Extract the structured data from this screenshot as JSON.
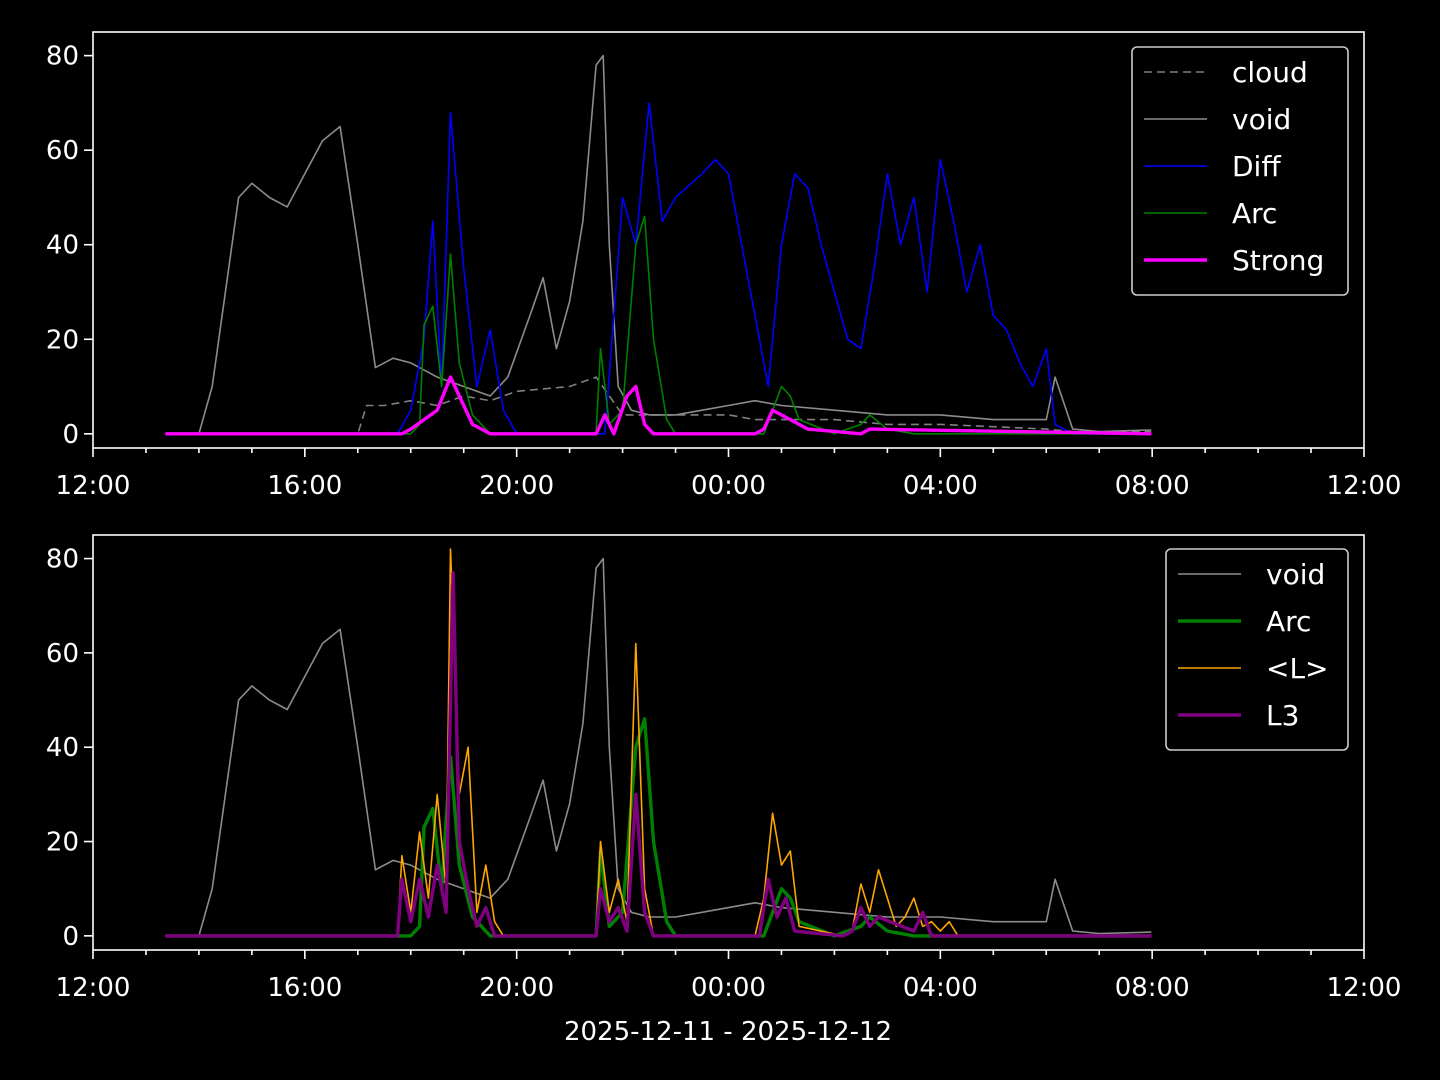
{
  "xlabel": "2025-12-11 - 2025-12-12",
  "chart_data": [
    {
      "type": "line",
      "xlim": [
        "2025-12-11 12:00",
        "2025-12-12 12:00"
      ],
      "ylim": [
        -3,
        85
      ],
      "xticks": [
        "12:00",
        "16:00",
        "20:00",
        "00:00",
        "04:00",
        "08:00",
        "12:00"
      ],
      "yticks": [
        "0",
        "20",
        "40",
        "60",
        "80"
      ],
      "legend_position": "top-right",
      "series": [
        {
          "name": "cloud",
          "color": "#808080",
          "style": "dashed",
          "width": 1.6,
          "x": [
            "2025-12-11 13:22",
            "2025-12-11 17:00",
            "2025-12-11 17:10",
            "2025-12-11 17:30",
            "2025-12-11 18:00",
            "2025-12-11 18:30",
            "2025-12-11 19:00",
            "2025-12-11 19:30",
            "2025-12-11 20:00",
            "2025-12-11 21:00",
            "2025-12-11 21:30",
            "2025-12-11 22:00",
            "2025-12-11 23:00",
            "2025-12-12 00:00",
            "2025-12-12 00:30",
            "2025-12-12 01:00",
            "2025-12-12 02:00",
            "2025-12-12 03:00",
            "2025-12-12 04:00",
            "2025-12-12 05:00",
            "2025-12-12 06:00",
            "2025-12-12 06:30",
            "2025-12-12 07:59"
          ],
          "y": [
            0,
            0,
            6,
            6,
            7,
            6,
            8,
            7,
            9,
            10,
            12,
            4,
            4,
            4,
            3,
            3,
            3,
            2,
            2,
            1.5,
            1,
            0.5,
            0.5
          ]
        },
        {
          "name": "void",
          "color": "#8c8c8c",
          "style": "solid",
          "width": 1.6,
          "x": [
            "2025-12-11 13:22",
            "2025-12-11 14:00",
            "2025-12-11 14:15",
            "2025-12-11 14:30",
            "2025-12-11 14:45",
            "2025-12-11 15:00",
            "2025-12-11 15:20",
            "2025-12-11 15:40",
            "2025-12-11 16:00",
            "2025-12-11 16:20",
            "2025-12-11 16:40",
            "2025-12-11 17:00",
            "2025-12-11 17:20",
            "2025-12-11 17:40",
            "2025-12-11 18:00",
            "2025-12-11 18:30",
            "2025-12-11 19:00",
            "2025-12-11 19:30",
            "2025-12-11 19:50",
            "2025-12-11 20:15",
            "2025-12-11 20:30",
            "2025-12-11 20:45",
            "2025-12-11 21:00",
            "2025-12-11 21:15",
            "2025-12-11 21:30",
            "2025-12-11 21:38",
            "2025-12-11 21:45",
            "2025-12-11 21:55",
            "2025-12-11 22:10",
            "2025-12-11 22:30",
            "2025-12-11 23:00",
            "2025-12-11 23:30",
            "2025-12-12 00:00",
            "2025-12-12 00:30",
            "2025-12-12 01:00",
            "2025-12-12 02:00",
            "2025-12-12 03:00",
            "2025-12-12 04:00",
            "2025-12-12 05:00",
            "2025-12-12 06:00",
            "2025-12-12 06:10",
            "2025-12-12 06:30",
            "2025-12-12 07:00",
            "2025-12-12 07:59"
          ],
          "y": [
            0,
            0,
            10,
            30,
            50,
            53,
            50,
            48,
            55,
            62,
            65,
            40,
            14,
            16,
            15,
            12,
            10,
            8,
            12,
            25,
            33,
            18,
            28,
            45,
            78,
            80,
            40,
            10,
            5,
            4,
            4,
            5,
            6,
            7,
            6,
            5,
            4,
            4,
            3,
            3,
            12,
            1,
            0.5,
            0.8
          ]
        },
        {
          "name": "Diff",
          "color": "#0000ff",
          "style": "solid",
          "width": 1.6,
          "x": [
            "2025-12-11 13:22",
            "2025-12-11 17:45",
            "2025-12-11 18:00",
            "2025-12-11 18:15",
            "2025-12-11 18:25",
            "2025-12-11 18:35",
            "2025-12-11 18:45",
            "2025-12-11 19:00",
            "2025-12-11 19:15",
            "2025-12-11 19:30",
            "2025-12-11 19:45",
            "2025-12-11 20:00",
            "2025-12-11 21:00",
            "2025-12-11 21:40",
            "2025-12-11 21:50",
            "2025-12-11 22:00",
            "2025-12-11 22:15",
            "2025-12-11 22:30",
            "2025-12-11 22:45",
            "2025-12-11 23:00",
            "2025-12-11 23:30",
            "2025-12-11 23:45",
            "2025-12-12 00:00",
            "2025-12-12 00:15",
            "2025-12-12 00:30",
            "2025-12-12 00:45",
            "2025-12-12 01:00",
            "2025-12-12 01:15",
            "2025-12-12 01:30",
            "2025-12-12 01:45",
            "2025-12-12 02:00",
            "2025-12-12 02:15",
            "2025-12-12 02:30",
            "2025-12-12 02:45",
            "2025-12-12 03:00",
            "2025-12-12 03:15",
            "2025-12-12 03:30",
            "2025-12-12 03:45",
            "2025-12-12 04:00",
            "2025-12-12 04:15",
            "2025-12-12 04:30",
            "2025-12-12 04:45",
            "2025-12-12 05:00",
            "2025-12-12 05:15",
            "2025-12-12 05:30",
            "2025-12-12 05:45",
            "2025-12-12 06:00",
            "2025-12-12 06:10",
            "2025-12-12 06:30",
            "2025-12-12 07:59"
          ],
          "y": [
            0,
            0,
            5,
            20,
            45,
            10,
            68,
            35,
            10,
            22,
            5,
            0,
            0,
            0,
            25,
            50,
            40,
            70,
            45,
            50,
            55,
            58,
            55,
            40,
            25,
            10,
            40,
            55,
            52,
            40,
            30,
            20,
            18,
            35,
            55,
            40,
            50,
            30,
            58,
            45,
            30,
            40,
            25,
            22,
            15,
            10,
            18,
            2,
            0,
            0
          ]
        },
        {
          "name": "Arc",
          "color": "#008000",
          "style": "solid",
          "width": 1.6,
          "x": [
            "2025-12-11 13:22",
            "2025-12-11 18:00",
            "2025-12-11 18:10",
            "2025-12-11 18:15",
            "2025-12-11 18:25",
            "2025-12-11 18:35",
            "2025-12-11 18:45",
            "2025-12-11 18:55",
            "2025-12-11 19:10",
            "2025-12-11 19:20",
            "2025-12-11 19:30",
            "2025-12-11 21:30",
            "2025-12-11 21:35",
            "2025-12-11 21:45",
            "2025-12-11 22:00",
            "2025-12-11 22:15",
            "2025-12-11 22:25",
            "2025-12-11 22:35",
            "2025-12-11 22:50",
            "2025-12-11 23:00",
            "2025-12-12 00:40",
            "2025-12-12 00:50",
            "2025-12-12 01:00",
            "2025-12-12 01:10",
            "2025-12-12 01:20",
            "2025-12-12 02:00",
            "2025-12-12 02:30",
            "2025-12-12 02:40",
            "2025-12-12 03:00",
            "2025-12-12 03:30",
            "2025-12-12 07:59"
          ],
          "y": [
            0,
            0,
            2,
            23,
            27,
            10,
            38,
            15,
            4,
            2,
            0,
            0,
            18,
            2,
            5,
            40,
            46,
            20,
            3,
            0,
            0,
            5,
            10,
            8,
            3,
            0,
            2,
            4,
            1,
            0,
            0
          ]
        },
        {
          "name": "Strong",
          "color": "#ff00ff",
          "style": "solid",
          "width": 3.4,
          "x": [
            "2025-12-11 13:22",
            "2025-12-11 17:50",
            "2025-12-11 18:00",
            "2025-12-11 18:15",
            "2025-12-11 18:30",
            "2025-12-11 18:45",
            "2025-12-11 18:55",
            "2025-12-11 19:10",
            "2025-12-11 19:20",
            "2025-12-11 19:30",
            "2025-12-11 21:30",
            "2025-12-11 21:40",
            "2025-12-11 21:50",
            "2025-12-11 22:05",
            "2025-12-11 22:15",
            "2025-12-11 22:25",
            "2025-12-11 22:35",
            "2025-12-12 00:30",
            "2025-12-12 00:40",
            "2025-12-12 00:50",
            "2025-12-12 01:10",
            "2025-12-12 01:30",
            "2025-12-12 02:30",
            "2025-12-12 02:40",
            "2025-12-12 07:59"
          ],
          "y": [
            0,
            0,
            1,
            3,
            5,
            12,
            8,
            2,
            1,
            0,
            0,
            4,
            0,
            8,
            10,
            2,
            0,
            0,
            1,
            5,
            3,
            1,
            0,
            1,
            0
          ]
        }
      ]
    },
    {
      "type": "line",
      "xlim": [
        "2025-12-11 12:00",
        "2025-12-12 12:00"
      ],
      "ylim": [
        -3,
        85
      ],
      "xticks": [
        "12:00",
        "16:00",
        "20:00",
        "00:00",
        "04:00",
        "08:00",
        "12:00"
      ],
      "yticks": [
        "0",
        "20",
        "40",
        "60",
        "80"
      ],
      "legend_position": "top-right",
      "series": [
        {
          "name": "void",
          "color": "#8c8c8c",
          "style": "solid",
          "width": 1.6,
          "x": [
            "2025-12-11 13:22",
            "2025-12-11 14:00",
            "2025-12-11 14:15",
            "2025-12-11 14:30",
            "2025-12-11 14:45",
            "2025-12-11 15:00",
            "2025-12-11 15:20",
            "2025-12-11 15:40",
            "2025-12-11 16:00",
            "2025-12-11 16:20",
            "2025-12-11 16:40",
            "2025-12-11 17:00",
            "2025-12-11 17:20",
            "2025-12-11 17:40",
            "2025-12-11 18:00",
            "2025-12-11 18:30",
            "2025-12-11 19:00",
            "2025-12-11 19:30",
            "2025-12-11 19:50",
            "2025-12-11 20:15",
            "2025-12-11 20:30",
            "2025-12-11 20:45",
            "2025-12-11 21:00",
            "2025-12-11 21:15",
            "2025-12-11 21:30",
            "2025-12-11 21:38",
            "2025-12-11 21:45",
            "2025-12-11 21:55",
            "2025-12-11 22:10",
            "2025-12-11 22:30",
            "2025-12-11 23:00",
            "2025-12-11 23:30",
            "2025-12-12 00:00",
            "2025-12-12 00:30",
            "2025-12-12 01:00",
            "2025-12-12 02:00",
            "2025-12-12 03:00",
            "2025-12-12 04:00",
            "2025-12-12 05:00",
            "2025-12-12 06:00",
            "2025-12-12 06:10",
            "2025-12-12 06:30",
            "2025-12-12 07:00",
            "2025-12-12 07:59"
          ],
          "y": [
            0,
            0,
            10,
            30,
            50,
            53,
            50,
            48,
            55,
            62,
            65,
            40,
            14,
            16,
            15,
            12,
            10,
            8,
            12,
            25,
            33,
            18,
            28,
            45,
            78,
            80,
            40,
            10,
            5,
            4,
            4,
            5,
            6,
            7,
            6,
            5,
            4,
            4,
            3,
            3,
            12,
            1,
            0.5,
            0.8
          ]
        },
        {
          "name": "Arc",
          "color": "#008000",
          "style": "solid",
          "width": 3.4,
          "x": [
            "2025-12-11 13:22",
            "2025-12-11 18:00",
            "2025-12-11 18:10",
            "2025-12-11 18:15",
            "2025-12-11 18:25",
            "2025-12-11 18:35",
            "2025-12-11 18:45",
            "2025-12-11 18:55",
            "2025-12-11 19:10",
            "2025-12-11 19:20",
            "2025-12-11 19:30",
            "2025-12-11 21:30",
            "2025-12-11 21:35",
            "2025-12-11 21:45",
            "2025-12-11 22:00",
            "2025-12-11 22:15",
            "2025-12-11 22:25",
            "2025-12-11 22:35",
            "2025-12-11 22:50",
            "2025-12-11 23:00",
            "2025-12-12 00:40",
            "2025-12-12 00:50",
            "2025-12-12 01:00",
            "2025-12-12 01:10",
            "2025-12-12 01:20",
            "2025-12-12 02:00",
            "2025-12-12 02:30",
            "2025-12-12 02:40",
            "2025-12-12 03:00",
            "2025-12-12 03:30",
            "2025-12-12 07:59"
          ],
          "y": [
            0,
            0,
            2,
            23,
            27,
            10,
            38,
            15,
            4,
            2,
            0,
            0,
            18,
            2,
            5,
            40,
            46,
            20,
            3,
            0,
            0,
            5,
            10,
            8,
            3,
            0,
            2,
            4,
            1,
            0,
            0
          ]
        },
        {
          "name": "<L>",
          "color": "#ffa500",
          "style": "solid",
          "width": 1.6,
          "x": [
            "2025-12-11 13:22",
            "2025-12-11 17:45",
            "2025-12-11 17:50",
            "2025-12-11 18:00",
            "2025-12-11 18:10",
            "2025-12-11 18:20",
            "2025-12-11 18:30",
            "2025-12-11 18:40",
            "2025-12-11 18:45",
            "2025-12-11 18:55",
            "2025-12-11 19:05",
            "2025-12-11 19:15",
            "2025-12-11 19:25",
            "2025-12-11 19:35",
            "2025-12-11 19:45",
            "2025-12-11 21:30",
            "2025-12-11 21:35",
            "2025-12-11 21:45",
            "2025-12-11 21:55",
            "2025-12-11 22:05",
            "2025-12-11 22:15",
            "2025-12-11 22:25",
            "2025-12-11 22:35",
            "2025-12-12 00:30",
            "2025-12-12 00:40",
            "2025-12-12 00:50",
            "2025-12-12 01:00",
            "2025-12-12 01:10",
            "2025-12-12 01:20",
            "2025-12-12 02:10",
            "2025-12-12 02:20",
            "2025-12-12 02:30",
            "2025-12-12 02:40",
            "2025-12-12 02:50",
            "2025-12-12 03:10",
            "2025-12-12 03:20",
            "2025-12-12 03:30",
            "2025-12-12 03:40",
            "2025-12-12 03:50",
            "2025-12-12 04:00",
            "2025-12-12 04:10",
            "2025-12-12 04:20",
            "2025-12-12 07:59"
          ],
          "y": [
            0,
            0,
            17,
            5,
            22,
            8,
            30,
            10,
            82,
            30,
            40,
            5,
            15,
            3,
            0,
            0,
            20,
            5,
            12,
            3,
            62,
            10,
            0,
            0,
            8,
            26,
            15,
            18,
            2,
            0,
            1,
            11,
            5,
            14,
            2,
            4,
            8,
            2,
            3,
            1,
            3,
            0,
            0
          ]
        },
        {
          "name": "L3",
          "color": "#800080",
          "style": "solid",
          "width": 3.4,
          "x": [
            "2025-12-11 13:22",
            "2025-12-11 17:45",
            "2025-12-11 17:50",
            "2025-12-11 18:00",
            "2025-12-11 18:10",
            "2025-12-11 18:20",
            "2025-12-11 18:30",
            "2025-12-11 18:40",
            "2025-12-11 18:48",
            "2025-12-11 18:55",
            "2025-12-11 19:05",
            "2025-12-11 19:15",
            "2025-12-11 19:25",
            "2025-12-11 19:35",
            "2025-12-11 21:30",
            "2025-12-11 21:35",
            "2025-12-11 21:45",
            "2025-12-11 21:55",
            "2025-12-11 22:05",
            "2025-12-11 22:15",
            "2025-12-11 22:25",
            "2025-12-11 22:35",
            "2025-12-12 00:35",
            "2025-12-12 00:45",
            "2025-12-12 00:55",
            "2025-12-12 01:05",
            "2025-12-12 01:15",
            "2025-12-12 02:10",
            "2025-12-12 02:20",
            "2025-12-12 02:30",
            "2025-12-12 02:40",
            "2025-12-12 02:50",
            "2025-12-12 03:30",
            "2025-12-12 03:40",
            "2025-12-12 03:50",
            "2025-12-12 07:59"
          ],
          "y": [
            0,
            0,
            12,
            3,
            12,
            4,
            15,
            5,
            77,
            20,
            10,
            2,
            6,
            0,
            0,
            10,
            3,
            6,
            1,
            30,
            5,
            0,
            0,
            12,
            4,
            8,
            1,
            0,
            1,
            6,
            2,
            4,
            1,
            5,
            0,
            0
          ]
        }
      ]
    }
  ]
}
